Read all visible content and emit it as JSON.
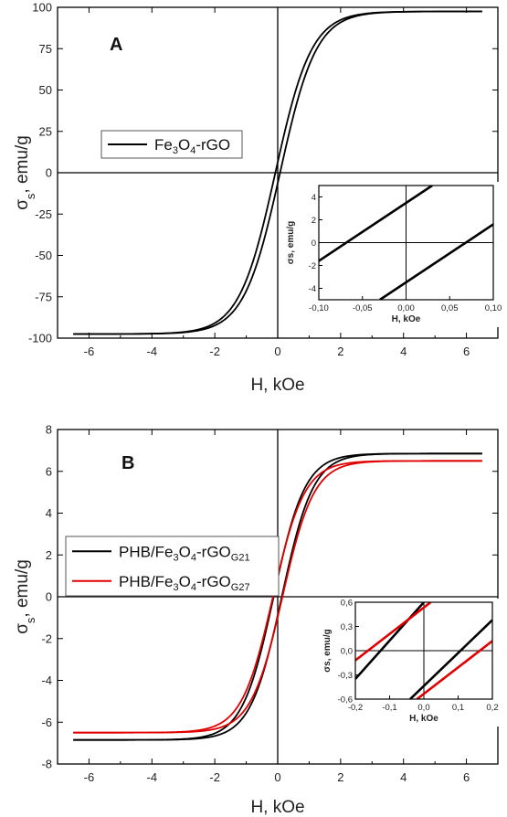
{
  "chart_data": [
    {
      "type": "line",
      "panel_label": "A",
      "xlabel": "H, kOe",
      "ylabel_main": "σ",
      "ylabel_sub": "s",
      "ylabel_rest": ", emu/g",
      "xlim": [
        -7,
        7
      ],
      "ylim": [
        -100,
        100
      ],
      "xticks": [
        -6,
        -4,
        -2,
        0,
        2,
        4,
        6
      ],
      "yticks": [
        -100,
        -75,
        -50,
        -25,
        0,
        25,
        50,
        75,
        100
      ],
      "legend_position": "upper-left",
      "series": [
        {
          "name_parts": [
            "Fe",
            "3",
            "O",
            "4",
            "-rGO"
          ],
          "color": "#000000",
          "Ms": 97.5,
          "Hc": 0.075,
          "w": 1.15,
          "xmin": -6.5,
          "xmax": 6.5
        }
      ],
      "inset": {
        "xlabel": "H, kOe",
        "ylabel": "σs, emu/g",
        "xlim": [
          -0.1,
          0.1
        ],
        "ylim": [
          -5,
          5
        ],
        "xticks": [
          -0.1,
          -0.05,
          0.0,
          0.05,
          0.1
        ],
        "xtick_labels": [
          "-0,10",
          "-0,05",
          "0,00",
          "0,05",
          "0,10"
        ],
        "yticks": [
          -4,
          -2,
          0,
          2,
          4
        ],
        "ytick_labels": [
          "-4",
          "-2",
          "0",
          "2",
          "4"
        ],
        "lines": [
          {
            "color": "#000000",
            "x": [
              -0.1,
              0.03
            ],
            "y": [
              -1.6,
              5.0
            ]
          },
          {
            "color": "#000000",
            "x": [
              -0.03,
              0.1
            ],
            "y": [
              -5.0,
              1.6
            ]
          }
        ]
      }
    },
    {
      "type": "line",
      "panel_label": "B",
      "xlabel": "H, kOe",
      "ylabel_main": "σ",
      "ylabel_sub": "s",
      "ylabel_rest": ", emu/g",
      "xlim": [
        -7,
        7
      ],
      "ylim": [
        -8,
        8
      ],
      "xticks": [
        -6,
        -4,
        -2,
        0,
        2,
        4,
        6
      ],
      "yticks": [
        -8,
        -6,
        -4,
        -2,
        0,
        2,
        4,
        6,
        8
      ],
      "legend_position": "middle-left",
      "series": [
        {
          "name_parts": [
            "PHB/Fe",
            "3",
            "O",
            "4",
            "-rGO",
            "G21"
          ],
          "color": "#000000",
          "Ms": 6.85,
          "Hc": 0.13,
          "w": 1.0,
          "xmin": -6.5,
          "xmax": 6.5
        },
        {
          "name_parts": [
            "PHB/Fe",
            "3",
            "O",
            "4",
            "-rGO",
            "G27"
          ],
          "color": "#e00000",
          "Ms": 6.5,
          "Hc": 0.15,
          "w": 1.0,
          "xmin": -6.5,
          "xmax": 6.5
        }
      ],
      "inset": {
        "xlabel": "H, kOe",
        "ylabel": "σs, emu/g",
        "xlim": [
          -0.2,
          0.2
        ],
        "ylim": [
          -0.6,
          0.6
        ],
        "xticks": [
          -0.2,
          -0.1,
          0.0,
          0.1,
          0.2
        ],
        "xtick_labels": [
          "-0,2",
          "-0,1",
          "0,0",
          "0,1",
          "0,2"
        ],
        "yticks": [
          -0.6,
          -0.3,
          0.0,
          0.3,
          0.6
        ],
        "ytick_labels": [
          "-0,6",
          "-0,3",
          "0,0",
          "0,3",
          "0,6"
        ],
        "lines": [
          {
            "color": "#000000",
            "x": [
              -0.2,
              0.0
            ],
            "y": [
              -0.35,
              0.6
            ]
          },
          {
            "color": "#e00000",
            "x": [
              -0.2,
              0.02
            ],
            "y": [
              -0.12,
              0.6
            ]
          },
          {
            "color": "#000000",
            "x": [
              -0.04,
              0.2
            ],
            "y": [
              -0.6,
              0.38
            ]
          },
          {
            "color": "#e00000",
            "x": [
              -0.02,
              0.2
            ],
            "y": [
              -0.6,
              0.12
            ]
          }
        ]
      }
    }
  ]
}
